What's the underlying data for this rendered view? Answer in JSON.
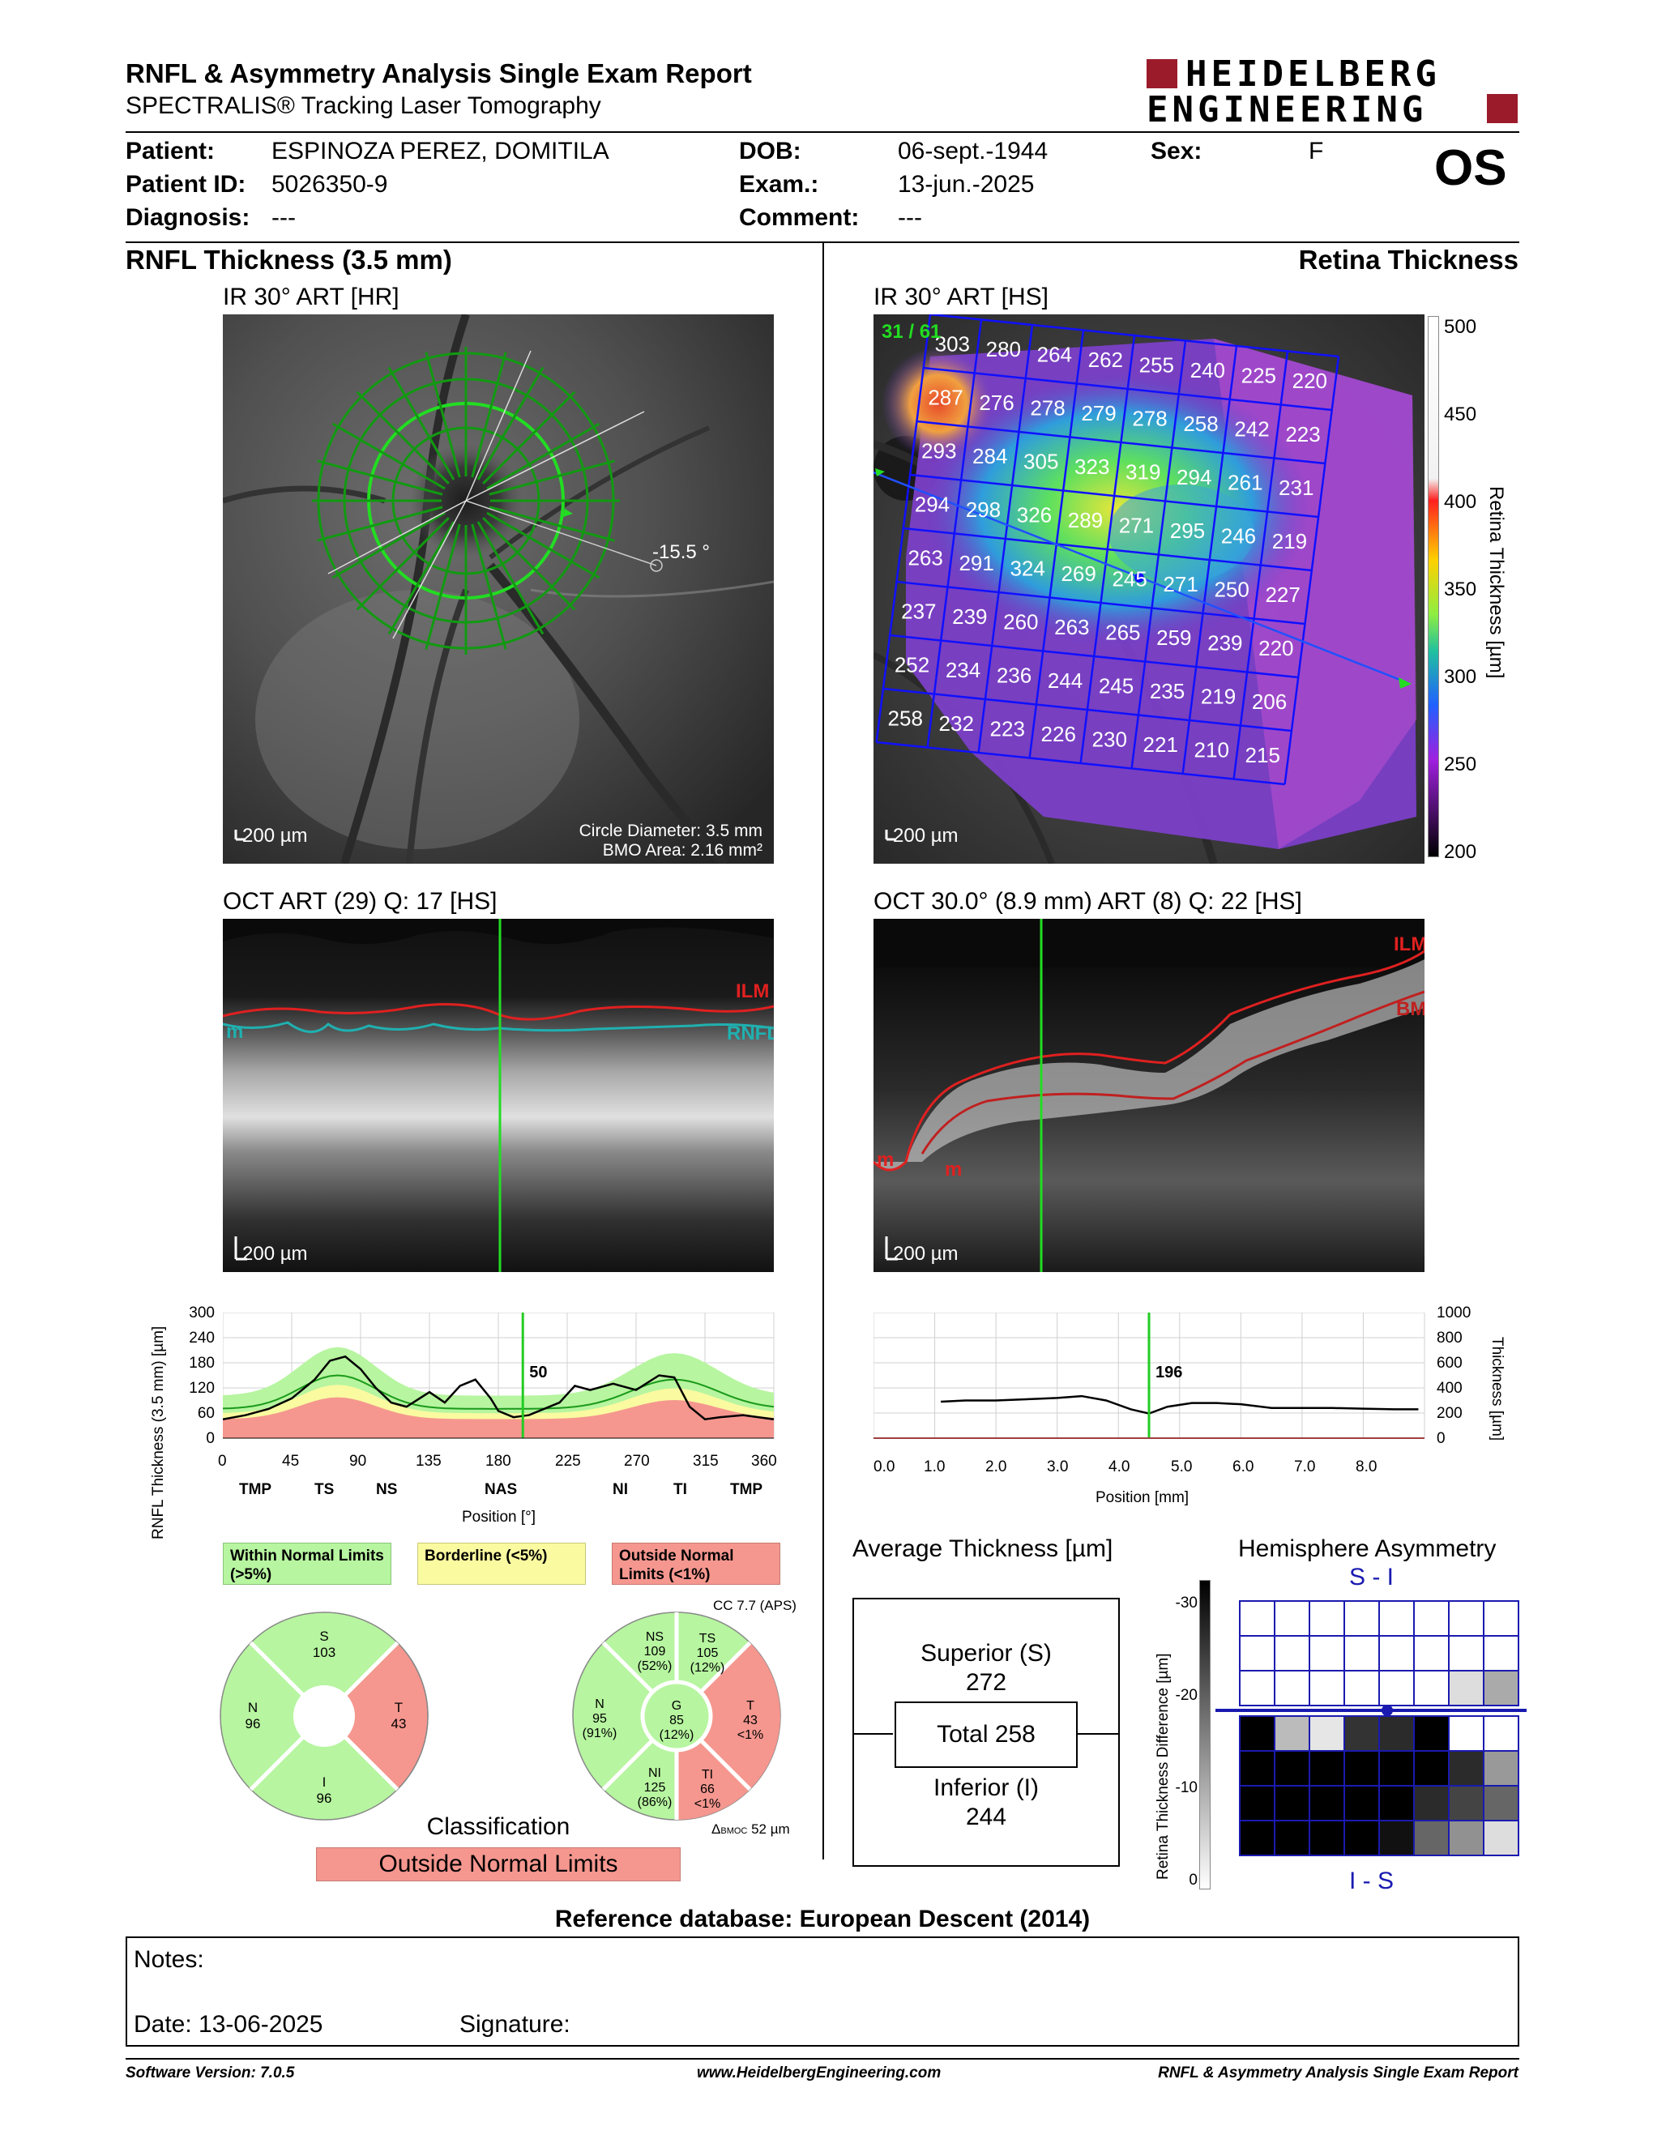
{
  "header": {
    "title": "RNFL & Asymmetry Analysis Single Exam Report",
    "subtitle": "SPECTRALIS® Tracking Laser Tomography",
    "brand_line1": "HEIDELBERG",
    "brand_line2": "ENGINEERING",
    "brand_color": "#9b1b2a"
  },
  "patient": {
    "patient_label": "Patient:",
    "patient_value": "ESPINOZA PEREZ, DOMITILA",
    "id_label": "Patient ID:",
    "id_value": "5026350-9",
    "diagnosis_label": "Diagnosis:",
    "diagnosis_value": "---",
    "dob_label": "DOB:",
    "dob_value": "06-sept.-1944",
    "exam_label": "Exam.:",
    "exam_value": "13-jun.-2025",
    "comment_label": "Comment:",
    "comment_value": "---",
    "sex_label": "Sex:",
    "sex_value": "F",
    "eye": "OS"
  },
  "left": {
    "section_title": "RNFL Thickness (3.5 mm)",
    "ir_label": "IR 30° ART [HR]",
    "ir_scale": "200 µm",
    "ir_angle": "-15.5 °",
    "ir_circle_diam": "Circle Diameter: 3.5 mm",
    "ir_bmo_area": "BMO Area: 2.16 mm²",
    "oct_label": "OCT ART (29) Q: 17 [HS]",
    "oct_scale": "200 µm",
    "oct_ilm": "ILM",
    "oct_rnfl": "RNFL",
    "oct_m": "m"
  },
  "right": {
    "section_title": "Retina Thickness",
    "ir_label": "IR 30° ART [HS]",
    "ir_scale": "200 µm",
    "ir_counter": "31 / 61",
    "oct_label": "OCT 30.0° (8.9 mm) ART (8) Q: 22 [HS]",
    "oct_scale": "200 µm",
    "oct_ilm": "ILM",
    "oct_bm": "BM",
    "oct_m1": "m",
    "oct_m2": "m",
    "colorbar_ticks": [
      "500",
      "450",
      "400",
      "350",
      "300",
      "250",
      "200"
    ],
    "colorbar_label": "Retina Thickness [µm]",
    "grid_values": [
      [
        303,
        280,
        264,
        262,
        255,
        240,
        225,
        220
      ],
      [
        287,
        276,
        278,
        279,
        278,
        258,
        242,
        223
      ],
      [
        293,
        284,
        305,
        323,
        319,
        294,
        261,
        231
      ],
      [
        294,
        298,
        326,
        289,
        271,
        295,
        246,
        219
      ],
      [
        263,
        291,
        324,
        269,
        245,
        271,
        250,
        227
      ],
      [
        237,
        239,
        260,
        263,
        265,
        259,
        239,
        220
      ],
      [
        252,
        234,
        236,
        244,
        245,
        235,
        219,
        206
      ],
      [
        258,
        232,
        223,
        226,
        230,
        221,
        210,
        215
      ]
    ]
  },
  "rnfl_chart": {
    "ylabel": "RNFL Thickness (3.5 mm) [µm]",
    "xlabel": "Position [°]",
    "yticks": [
      "300",
      "240",
      "180",
      "120",
      "60",
      "0"
    ],
    "xticks": [
      "0",
      "45",
      "90",
      "135",
      "180",
      "225",
      "270",
      "315",
      "360"
    ],
    "sector_labels": [
      "TMP",
      "TS",
      "NS",
      "NAS",
      "NI",
      "TI",
      "TMP"
    ],
    "marker_value": "50"
  },
  "retina_chart": {
    "ylabel": "Thickness [µm]",
    "xlabel": "Position [mm]",
    "yticks": [
      "1000",
      "800",
      "600",
      "400",
      "200",
      "0"
    ],
    "xticks": [
      "0.0",
      "1.0",
      "2.0",
      "3.0",
      "4.0",
      "5.0",
      "6.0",
      "7.0",
      "8.0"
    ],
    "marker_value": "196"
  },
  "chart_data": [
    {
      "type": "line",
      "title": "",
      "xlabel": "Position [°]",
      "ylabel": "RNFL Thickness (3.5 mm) [µm]",
      "xlim": [
        0,
        360
      ],
      "ylim": [
        0,
        300
      ],
      "series": [
        {
          "x": [
            0,
            15,
            30,
            45,
            60,
            70,
            80,
            90,
            100,
            110,
            120,
            135,
            145,
            155,
            165,
            175,
            180,
            190,
            200,
            210,
            220,
            230,
            240,
            255,
            270,
            285,
            295,
            305,
            315,
            325,
            340,
            360
          ],
          "values": [
            45,
            55,
            70,
            95,
            140,
            185,
            195,
            165,
            120,
            85,
            75,
            110,
            85,
            125,
            140,
            95,
            65,
            50,
            55,
            70,
            85,
            125,
            115,
            130,
            115,
            150,
            145,
            75,
            45,
            50,
            55,
            45
          ]
        }
      ]
    },
    {
      "type": "line",
      "title": "",
      "xlabel": "Position [mm]",
      "ylabel": "Thickness [µm]",
      "xlim": [
        0,
        9
      ],
      "ylim": [
        0,
        1000
      ],
      "series": [
        {
          "x": [
            1.1,
            1.5,
            2.0,
            2.5,
            3.0,
            3.4,
            3.8,
            4.2,
            4.5,
            4.8,
            5.2,
            5.6,
            6.0,
            6.5,
            7.0,
            7.5,
            8.0,
            8.5,
            8.9
          ],
          "values": [
            290,
            300,
            300,
            310,
            320,
            335,
            300,
            230,
            196,
            250,
            280,
            280,
            270,
            240,
            240,
            240,
            235,
            230,
            230
          ]
        }
      ]
    }
  ],
  "legend": {
    "within": "Within Normal Limits (>5%)",
    "borderline": "Borderline (<5%)",
    "outside": "Outside Normal Limits (<1%)",
    "green": "#b7f5a0",
    "yellow": "#fafaa0",
    "red": "#f5978f"
  },
  "sector_chart_1": {
    "s": "S",
    "s_val": "103",
    "n": "N",
    "n_val": "96",
    "t": "T",
    "t_val": "43",
    "i": "I",
    "i_val": "96"
  },
  "sector_chart_2": {
    "cc": "CC 7.7 (APS)",
    "ns": "NS",
    "ns_val": "109",
    "ns_pct": "(52%)",
    "ts": "TS",
    "ts_val": "105",
    "ts_pct": "(12%)",
    "n": "N",
    "n_val": "95",
    "n_pct": "(91%)",
    "g": "G",
    "g_val": "85",
    "g_pct": "(12%)",
    "t": "T",
    "t_val": "43",
    "t_pct": "<1%",
    "ni": "NI",
    "ni_val": "125",
    "ni_pct": "(86%)",
    "ti": "TI",
    "ti_val": "66",
    "ti_pct": "<1%",
    "bmo": "Δ",
    "bmo_sub": "BMOC",
    "bmo_val": "52 µm"
  },
  "classification": {
    "label": "Classification",
    "value": "Outside Normal Limits"
  },
  "avg_thickness": {
    "title": "Average Thickness [µm]",
    "superior_label": "Superior (S)",
    "superior_value": "272",
    "total": "Total 258",
    "inferior_label": "Inferior (I)",
    "inferior_value": "244"
  },
  "hemisphere": {
    "title": "Hemisphere Asymmetry",
    "top_label": "S - I",
    "bottom_label": "I - S",
    "scale_label": "Retina Thickness Difference [µm]",
    "scale_ticks": [
      "-30",
      "-20",
      "-10",
      "0"
    ],
    "cells": [
      [
        0,
        0,
        0,
        0,
        0,
        0,
        0,
        0
      ],
      [
        0,
        0,
        0,
        0,
        0,
        0,
        0,
        0
      ],
      [
        0,
        0,
        0,
        0,
        0,
        0,
        4,
        10
      ],
      [
        30,
        8,
        3,
        24,
        25,
        30,
        0,
        0
      ],
      [
        30,
        30,
        30,
        30,
        30,
        30,
        25,
        12
      ],
      [
        30,
        30,
        30,
        30,
        30,
        25,
        22,
        18
      ],
      [
        30,
        30,
        30,
        30,
        28,
        18,
        13,
        4
      ]
    ]
  },
  "footer": {
    "reference": "Reference database: European Descent (2014)",
    "notes_label": "Notes:",
    "date_label": "Date: 13-06-2025",
    "signature_label": "Signature:",
    "software": "Software Version: 7.0.5",
    "website": "www.HeidelbergEngineering.com",
    "report_name": "RNFL & Asymmetry Analysis Single Exam Report"
  }
}
